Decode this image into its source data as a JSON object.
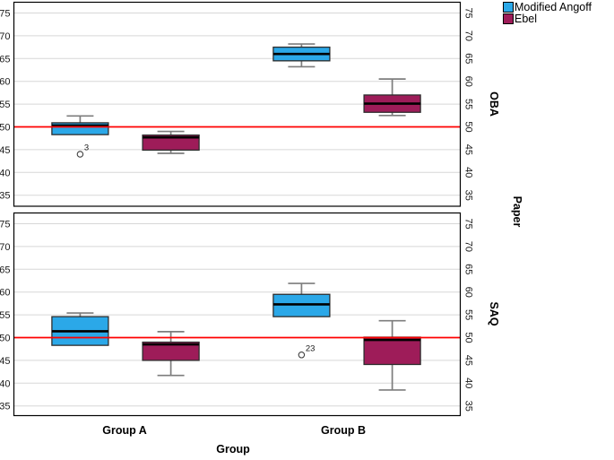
{
  "legend": {
    "items": [
      {
        "label": "Modified Angoff",
        "color": "#2BA8E8"
      },
      {
        "label": "Ebel",
        "color": "#9E1C59"
      }
    ]
  },
  "axes": {
    "y_ticks": [
      75,
      70,
      65,
      60,
      55,
      50,
      45,
      40,
      35
    ]
  },
  "chart_data": {
    "type": "boxplot",
    "title": "",
    "xlabel": "Group",
    "ylabel": "",
    "categories": [
      "Group A",
      "Group B"
    ],
    "series": [
      {
        "name": "Modified Angoff",
        "color": "#2BA8E8"
      },
      {
        "name": "Ebel",
        "color": "#9E1C59"
      }
    ],
    "panel_variable": "Paper",
    "ylim": [
      35,
      75
    ],
    "yticks": [
      35,
      40,
      45,
      50,
      55,
      60,
      65,
      70,
      75
    ],
    "grid": true,
    "legend_position": "top-right",
    "reference_line": {
      "value": 50,
      "color": "#FF0000"
    },
    "panels": [
      {
        "label": "OBA",
        "boxes": [
          {
            "category": "Group A",
            "series": "Modified Angoff",
            "min": 48.3,
            "q1": 48.3,
            "median": 50.3,
            "q3": 50.9,
            "max": 52.4,
            "outliers": [
              {
                "value": 44.0,
                "label": "3"
              }
            ]
          },
          {
            "category": "Group A",
            "series": "Ebel",
            "min": 44.2,
            "q1": 44.9,
            "median": 47.7,
            "q3": 48.2,
            "max": 49.0,
            "outliers": []
          },
          {
            "category": "Group B",
            "series": "Modified Angoff",
            "min": 63.2,
            "q1": 64.5,
            "median": 66.0,
            "q3": 67.5,
            "max": 68.2,
            "outliers": []
          },
          {
            "category": "Group B",
            "series": "Ebel",
            "min": 52.5,
            "q1": 53.2,
            "median": 55.1,
            "q3": 57.0,
            "max": 60.5,
            "outliers": []
          }
        ]
      },
      {
        "label": "SAQ",
        "boxes": [
          {
            "category": "Group A",
            "series": "Modified Angoff",
            "min": 48.3,
            "q1": 48.3,
            "median": 51.4,
            "q3": 54.6,
            "max": 55.4,
            "outliers": []
          },
          {
            "category": "Group A",
            "series": "Ebel",
            "min": 41.7,
            "q1": 45.0,
            "median": 48.5,
            "q3": 49.0,
            "max": 51.3,
            "outliers": []
          },
          {
            "category": "Group B",
            "series": "Modified Angoff",
            "min": 54.6,
            "q1": 54.6,
            "median": 57.3,
            "q3": 59.5,
            "max": 61.9,
            "outliers": [
              {
                "value": 46.2,
                "label": "23"
              }
            ]
          },
          {
            "category": "Group B",
            "series": "Ebel",
            "min": 38.5,
            "q1": 44.1,
            "median": 49.5,
            "q3": 50.1,
            "max": 53.7,
            "outliers": []
          }
        ]
      }
    ],
    "style": {
      "grid_color": "#D7D7D7",
      "panel_border_color": "#000000",
      "box_border_color": "#2D2D2D",
      "median_color": "#000000",
      "whisker_color": "#7D7D7D",
      "outlier_stroke": "#3F3F3F",
      "tick_label_color": "#1A1A1A"
    }
  }
}
